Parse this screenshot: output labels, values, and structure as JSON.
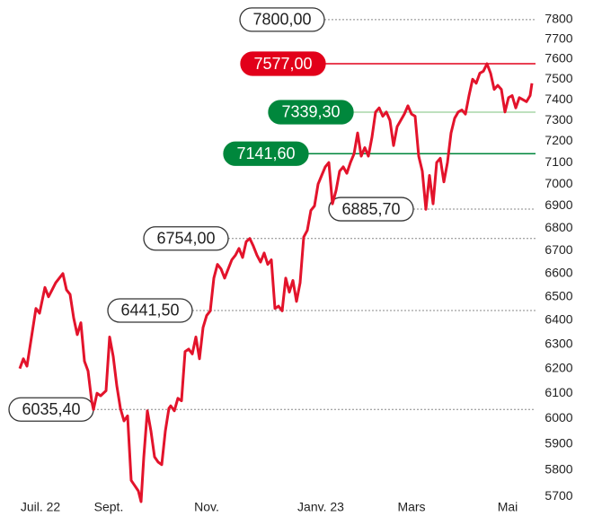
{
  "chart_data": {
    "type": "line",
    "log_scale": true,
    "color": "#e3132b",
    "x": [
      2,
      6,
      10,
      20,
      24,
      30,
      34,
      38,
      42,
      46,
      50,
      54,
      58,
      62,
      66,
      70,
      74,
      78,
      82,
      84,
      88,
      92,
      98,
      102,
      106,
      110,
      114,
      118,
      122,
      126,
      130,
      134,
      137,
      140,
      144,
      148,
      152,
      156,
      160,
      164,
      168,
      170,
      174,
      178,
      182,
      186,
      190,
      194,
      198,
      202,
      206,
      210,
      214,
      218,
      222,
      226,
      230,
      234,
      238,
      242,
      246,
      250,
      254,
      258,
      262,
      266,
      270,
      274,
      278,
      282,
      286,
      290,
      294,
      298,
      302,
      306,
      310,
      314,
      318,
      322,
      326,
      330,
      334,
      338,
      342,
      346,
      350,
      354,
      358,
      362,
      366,
      370,
      374,
      378,
      382,
      386,
      390,
      394,
      398,
      402,
      406,
      410,
      414,
      418,
      422,
      426,
      430,
      434,
      438,
      442,
      446,
      450,
      454,
      458,
      462,
      466,
      470,
      474,
      478,
      482,
      486,
      490,
      494,
      498,
      502,
      506,
      510,
      514,
      518,
      522,
      526,
      530,
      534,
      538,
      542,
      546,
      550,
      554,
      558,
      562,
      566,
      570,
      572
    ],
    "values": [
      6200,
      6240,
      6210,
      6450,
      6430,
      6540,
      6500,
      6530,
      6560,
      6580,
      6600,
      6530,
      6510,
      6410,
      6340,
      6390,
      6230,
      6190,
      6070,
      6035,
      6100,
      6090,
      6110,
      6330,
      6250,
      6130,
      6040,
      5990,
      6010,
      5760,
      5740,
      5720,
      5680,
      5848,
      6030,
      5950,
      5850,
      5830,
      5820,
      5950,
      6040,
      6050,
      6030,
      6080,
      6070,
      6270,
      6280,
      6260,
      6330,
      6240,
      6370,
      6420,
      6440,
      6580,
      6640,
      6620,
      6580,
      6620,
      6660,
      6680,
      6710,
      6670,
      6740,
      6754,
      6720,
      6680,
      6650,
      6690,
      6640,
      6660,
      6450,
      6460,
      6440,
      6580,
      6520,
      6570,
      6480,
      6560,
      6760,
      6790,
      6880,
      6900,
      7000,
      7040,
      7080,
      7100,
      6910,
      6970,
      7060,
      7080,
      7050,
      7100,
      7140,
      7240,
      7130,
      7170,
      7130,
      7220,
      7340,
      7360,
      7320,
      7340,
      7300,
      7180,
      7270,
      7300,
      7330,
      7370,
      7330,
      7320,
      7130,
      7060,
      6885,
      7040,
      6910,
      7100,
      7120,
      7010,
      7100,
      7240,
      7310,
      7340,
      7350,
      7330,
      7420,
      7500,
      7480,
      7530,
      7540,
      7577,
      7530,
      7450,
      7470,
      7450,
      7340,
      7410,
      7420,
      7360,
      7410,
      7400,
      7390,
      7420,
      7480
    ],
    "xlim": [
      0,
      580
    ],
    "xticks": [
      {
        "value": 25,
        "label": "Juil. 22"
      },
      {
        "value": 101,
        "label": "Sept."
      },
      {
        "value": 210,
        "label": "Nov."
      },
      {
        "value": 337,
        "label": "Janv. 23"
      },
      {
        "value": 438,
        "label": "Mars"
      },
      {
        "value": 545,
        "label": "Mai"
      }
    ],
    "ylim": [
      5660,
      7855
    ],
    "yticks": [
      7800,
      7700,
      7600,
      7500,
      7400,
      7300,
      7200,
      7100,
      7000,
      6900,
      6800,
      6700,
      6600,
      6500,
      6400,
      6300,
      6200,
      6100,
      6000,
      5900,
      5800,
      5700
    ],
    "annotations": [
      {
        "value": 7800,
        "label": "7800,00",
        "style": "dotted",
        "color": "#ffffff",
        "line_color": "#888888"
      },
      {
        "value": 7577,
        "label": "7577,00",
        "style": "solid",
        "color": "#e2001a",
        "line_color": "#e2001a"
      },
      {
        "value": 7339.3,
        "label": "7339,30",
        "style": "solid",
        "color": "#00873c",
        "line_color": "#a8d5a8"
      },
      {
        "value": 7141.6,
        "label": "7141,60",
        "style": "solid",
        "color": "#00873c",
        "line_color": "#00873c"
      },
      {
        "value": 6885.7,
        "label": "6885,70",
        "style": "dotted",
        "color": "#ffffff",
        "line_color": "#888888"
      },
      {
        "value": 6754,
        "label": "6754,00",
        "style": "dotted",
        "color": "#ffffff",
        "line_color": "#888888"
      },
      {
        "value": 6441.5,
        "label": "6441,50",
        "style": "dotted",
        "color": "#ffffff",
        "line_color": "#888888"
      },
      {
        "value": 6035.4,
        "label": "6035,40",
        "style": "dotted",
        "color": "#ffffff",
        "line_color": "#888888"
      }
    ]
  }
}
